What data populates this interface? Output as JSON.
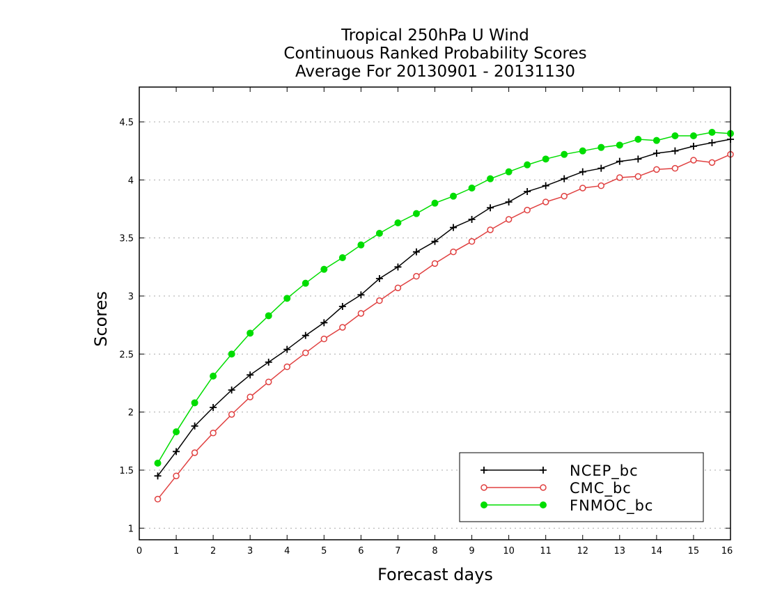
{
  "chart_data": {
    "type": "line",
    "title_lines": [
      "Tropical 250hPa U Wind",
      "Continuous Ranked Probability Scores",
      "Average For 20130901 - 20131130"
    ],
    "xlabel": "Forecast days",
    "ylabel": "Scores",
    "xlim": [
      0,
      16
    ],
    "ylim": [
      0.9,
      4.8
    ],
    "x_ticks": [
      0,
      1,
      2,
      3,
      4,
      5,
      6,
      7,
      8,
      9,
      10,
      11,
      12,
      13,
      14,
      15,
      16
    ],
    "y_ticks": [
      1,
      1.5,
      2,
      2.5,
      3,
      3.5,
      4,
      4.5
    ],
    "y_tick_labels": [
      "1",
      "1.5",
      "2",
      "2.5",
      "3",
      "3.5",
      "4",
      "4.5"
    ],
    "grid": "horizontal-dotted",
    "legend_position": "bottom-right",
    "x": [
      0.5,
      1,
      1.5,
      2,
      2.5,
      3,
      3.5,
      4,
      4.5,
      5,
      5.5,
      6,
      6.5,
      7,
      7.5,
      8,
      8.5,
      9,
      9.5,
      10,
      10.5,
      11,
      11.5,
      12,
      12.5,
      13,
      13.5,
      14,
      14.5,
      15,
      15.5,
      16
    ],
    "series": [
      {
        "name": "NCEP_bc",
        "color": "#000000",
        "marker": "plus",
        "values": [
          1.45,
          1.66,
          1.88,
          2.04,
          2.19,
          2.32,
          2.43,
          2.54,
          2.66,
          2.77,
          2.91,
          3.01,
          3.15,
          3.25,
          3.38,
          3.47,
          3.59,
          3.66,
          3.76,
          3.81,
          3.9,
          3.95,
          4.01,
          4.07,
          4.1,
          4.16,
          4.18,
          4.23,
          4.25,
          4.29,
          4.32,
          4.35
        ]
      },
      {
        "name": "CMC_bc",
        "color": "#e04040",
        "marker": "open-circle",
        "values": [
          1.25,
          1.45,
          1.65,
          1.82,
          1.98,
          2.13,
          2.26,
          2.39,
          2.51,
          2.63,
          2.73,
          2.85,
          2.96,
          3.07,
          3.17,
          3.28,
          3.38,
          3.47,
          3.57,
          3.66,
          3.74,
          3.81,
          3.86,
          3.93,
          3.95,
          4.02,
          4.03,
          4.09,
          4.1,
          4.17,
          4.15,
          4.22
        ]
      },
      {
        "name": "FNMOC_bc",
        "color": "#00dd00",
        "marker": "filled-circle",
        "values": [
          1.56,
          1.83,
          2.08,
          2.31,
          2.5,
          2.68,
          2.83,
          2.98,
          3.11,
          3.23,
          3.33,
          3.44,
          3.54,
          3.63,
          3.71,
          3.8,
          3.86,
          3.93,
          4.01,
          4.07,
          4.13,
          4.18,
          4.22,
          4.25,
          4.28,
          4.3,
          4.35,
          4.34,
          4.38,
          4.38,
          4.41,
          4.4
        ]
      }
    ]
  }
}
